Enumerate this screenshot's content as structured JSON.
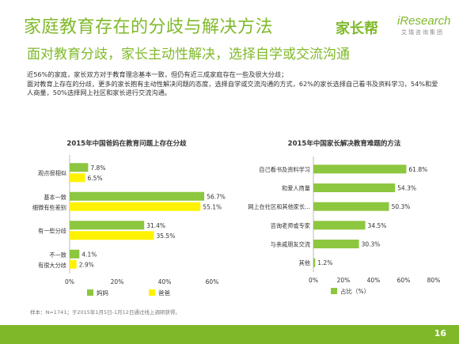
{
  "header": {
    "title": "家庭教育存在的分歧与解决方法",
    "subtitle": "面对教育分歧，家长主动性解决，选择自学或交流沟通"
  },
  "logos": {
    "partner_logo_text": "家长帮",
    "brand_name": "iResearch",
    "brand_subtitle": "艾瑞咨询集团"
  },
  "summary": {
    "line1": "近56%的家庭，家长双方对于教育理念基本一致，但仍有近三成家庭存在一些及很大分歧；",
    "line2": "面对教育上存在的分歧，更多的家长抱有主动性解决问题的态度，选择自学或交流沟通的方式，62%的家长选择自己看书及资料学习，54%和爱人商量，50%选择网上社区和家长进行交流沟通。"
  },
  "colors": {
    "accent": "#7fb92a",
    "series_mama": "#8dc63f",
    "series_baba": "#fff200"
  },
  "chart_data": [
    {
      "type": "bar",
      "orientation": "horizontal",
      "title": "2015年中国爸妈在教育问题上存在分歧",
      "categories": [
        [
          "观点很相似",
          ""
        ],
        [
          "基本一致",
          "细微有些差别"
        ],
        [
          "有一些分歧",
          ""
        ],
        [
          "不一致",
          "有很大分歧"
        ]
      ],
      "series": [
        {
          "name": "妈妈",
          "values": [
            7.8,
            56.7,
            31.4,
            4.1
          ]
        },
        {
          "name": "爸爸",
          "values": [
            6.5,
            55.1,
            35.5,
            2.9
          ]
        }
      ],
      "xlim": [
        0,
        60
      ],
      "xticks": [
        "0%",
        "20%",
        "40%",
        "60%"
      ],
      "value_suffix": "%",
      "legend": "bottom"
    },
    {
      "type": "bar",
      "orientation": "horizontal",
      "title": "2015年中国家长解决教育难题的方法",
      "categories": [
        "自己看书及资料学习",
        "和爱人商量",
        "网上在社区和其他家长...",
        "咨询老师或专家",
        "与亲戚朋友交流",
        "其他"
      ],
      "series": [
        {
          "name": "占比（%）",
          "values": [
            61.8,
            54.3,
            50.3,
            34.5,
            30.3,
            1.2
          ]
        }
      ],
      "xlim": [
        0,
        80
      ],
      "xticks": [
        "0%",
        "20%",
        "40%",
        "60%",
        "80%"
      ],
      "value_suffix": "%",
      "legend": "bottom"
    }
  ],
  "footer": {
    "source": "样本：N=1741；于2015年1月5日-1月12日通过线上调研获得。",
    "page_number": "16"
  }
}
